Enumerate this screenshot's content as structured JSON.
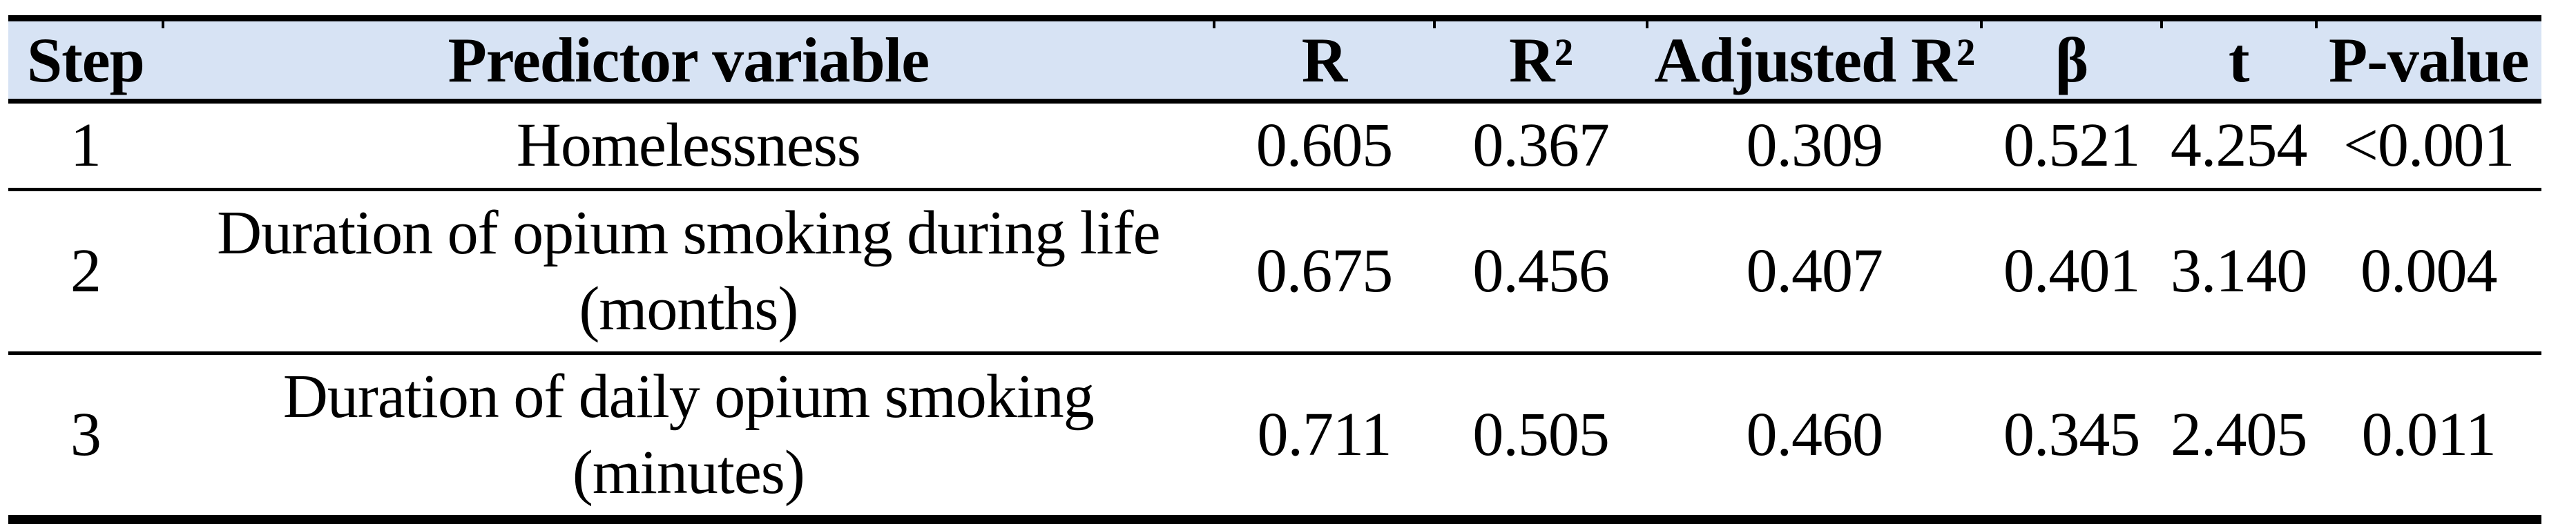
{
  "table": {
    "columns": [
      {
        "key": "step",
        "label": "Step"
      },
      {
        "key": "pred",
        "label": "Predictor variable"
      },
      {
        "key": "r",
        "label": "R"
      },
      {
        "key": "r2",
        "label": "R²"
      },
      {
        "key": "adjr2",
        "label": "Adjusted R²"
      },
      {
        "key": "beta",
        "label": "β"
      },
      {
        "key": "t",
        "label": "t"
      },
      {
        "key": "p",
        "label": "P-value"
      }
    ],
    "rows": [
      {
        "step": "1",
        "pred": "Homelessness",
        "r": "0.605",
        "r2": "0.367",
        "adjr2": "0.309",
        "beta": "0.521",
        "t": "4.254",
        "p": "<0.001"
      },
      {
        "step": "2",
        "pred": "Duration of opium smoking during life (months)",
        "r": "0.675",
        "r2": "0.456",
        "adjr2": "0.407",
        "beta": "0.401",
        "t": "3.140",
        "p": "0.004"
      },
      {
        "step": "3",
        "pred": "Duration of daily opium smoking (minutes)",
        "r": "0.711",
        "r2": "0.505",
        "adjr2": "0.460",
        "beta": "0.345",
        "t": "2.405",
        "p": "0.011"
      }
    ],
    "colors": {
      "header_bg": "#d7e3f4",
      "rule": "#000000",
      "text": "#000000"
    }
  }
}
